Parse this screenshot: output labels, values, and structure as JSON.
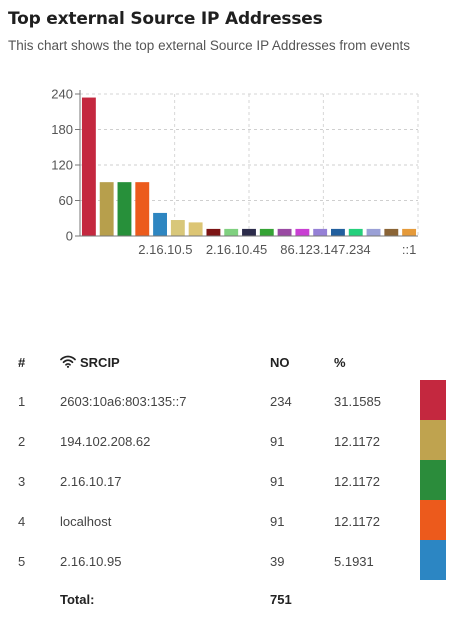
{
  "header": {
    "title": "Top external Source IP Addresses",
    "subtitle": "This chart shows the top external Source IP Addresses from events"
  },
  "chart_data": {
    "type": "bar",
    "ylim": [
      0,
      240
    ],
    "yticks": [
      0,
      60,
      120,
      180,
      240
    ],
    "grid": true,
    "values": [
      234,
      91,
      91,
      91,
      39,
      27,
      23,
      12,
      12,
      12,
      12,
      12,
      12,
      12,
      12,
      12,
      12,
      12,
      12
    ],
    "colors": [
      "#c4283f",
      "#b79f4c",
      "#27903a",
      "#ec5b1c",
      "#2e86c1",
      "#d8c77a",
      "#dcc574",
      "#7c1414",
      "#7fd07f",
      "#2b2b4a",
      "#35a335",
      "#9a4aa3",
      "#c93fd3",
      "#9580d6",
      "#215f9e",
      "#25d07c",
      "#9aa0d6",
      "#8a6436",
      "#e59a3a"
    ],
    "tick_labels": [
      {
        "index": 4.3,
        "label": "2.16.10.5"
      },
      {
        "index": 8.3,
        "label": "2.16.10.45"
      },
      {
        "index": 13.3,
        "label": "86.123.147.234"
      },
      {
        "index": 18,
        "label": "::1"
      }
    ]
  },
  "table": {
    "headers": {
      "index": "#",
      "ip": "SRCIP",
      "count": "NO",
      "pct": "%"
    },
    "rows": [
      {
        "n": "1",
        "ip": "2603:10a6:803:135::7",
        "count": "234",
        "pct": "31.1585",
        "color": "#c4283f"
      },
      {
        "n": "2",
        "ip": "194.102.208.62",
        "count": "91",
        "pct": "12.1172",
        "color": "#bfa34f"
      },
      {
        "n": "3",
        "ip": "2.16.10.17",
        "count": "91",
        "pct": "12.1172",
        "color": "#2b8c3b"
      },
      {
        "n": "4",
        "ip": "localhost",
        "count": "91",
        "pct": "12.1172",
        "color": "#ec5a1c"
      },
      {
        "n": "5",
        "ip": "2.16.10.95",
        "count": "39",
        "pct": "5.1931",
        "color": "#2c86c3"
      }
    ],
    "total_label": "Total:",
    "total_value": "751"
  },
  "icons": {
    "srcip": "wifi-icon"
  }
}
